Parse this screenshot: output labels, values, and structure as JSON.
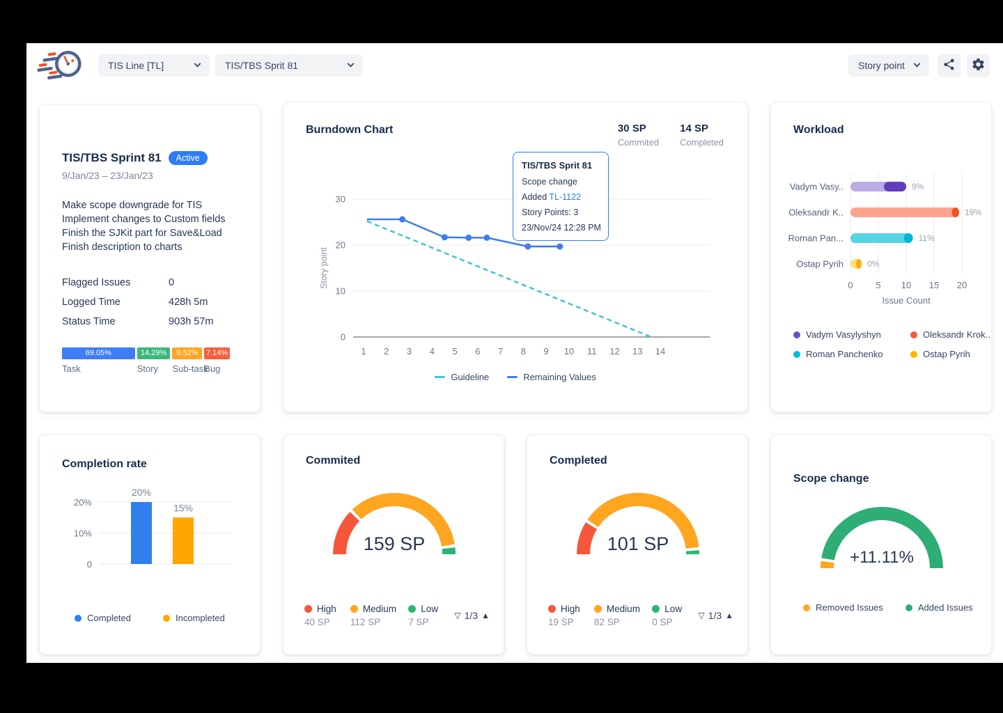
{
  "header": {
    "board_dropdown": {
      "value": "TIS Line [TL]"
    },
    "sprint_dropdown": {
      "value": "TIS/TBS Sprit 81"
    },
    "metric_dropdown": {
      "value": "Story point"
    }
  },
  "sprint_card": {
    "title": "TIS/TBS Sprint 81",
    "status_badge": "Active",
    "date_range": "9/Jan/23 – 23/Jan/23",
    "description": [
      "Make scope downgrade for TIS",
      "Implement changes to Custom fields",
      "Finish the SJKit part for Save&Load",
      "Finish description to charts"
    ],
    "stats": [
      {
        "label": "Flagged Issues",
        "value": "0"
      },
      {
        "label": "Logged Time",
        "value": "428h 5m"
      },
      {
        "label": "Status Time",
        "value": "903h 57m"
      }
    ],
    "issue_breakdown": [
      {
        "label": "Task",
        "percent": "69.05%",
        "color": "#3D7DF5",
        "width": 41.5
      },
      {
        "label": "Story",
        "percent": "14.29%",
        "color": "#3CB87B",
        "width": 19
      },
      {
        "label": "Sub-task",
        "percent": "9.52%",
        "color": "#FFA51F",
        "width": 17
      },
      {
        "label": "Bug",
        "percent": "7.14%",
        "color": "#F95D3B",
        "width": 14.5
      }
    ]
  },
  "burndown": {
    "committed": {
      "value": "30 SP",
      "label": "Commited"
    },
    "completed": {
      "value": "14 SP",
      "label": "Completed"
    },
    "tooltip": {
      "title": "TIS/TBS Sprit 81",
      "event": "Scope change",
      "added_label": "Added",
      "issue_key": "TL-1122",
      "story_points": "Story Points: 3",
      "timestamp": "23/Nov/24 12:28 PM"
    }
  },
  "chart_data": [
    {
      "id": "burndown",
      "type": "line",
      "title": "Burndown Chart",
      "xlabel": "",
      "ylabel": "Story point",
      "xlim": [
        1,
        14
      ],
      "ylim": [
        0,
        30
      ],
      "xticks": [
        1,
        2,
        3,
        4,
        5,
        6,
        7,
        8,
        9,
        10,
        11,
        12,
        13,
        14
      ],
      "yticks": [
        0,
        10,
        20,
        30
      ],
      "grid": true,
      "legend_position": "bottom",
      "series": [
        {
          "name": "Guideline",
          "color": "#3EC6D0",
          "style": "dashed",
          "points": [
            [
              1.15,
              25.2
            ],
            [
              13.6,
              0
            ]
          ]
        },
        {
          "name": "Remaining Values",
          "color": "#3B7CF0",
          "style": "solid",
          "markers": true,
          "points": [
            [
              1.15,
              25.6
            ],
            [
              2.7,
              25.6
            ],
            [
              4.55,
              21.7
            ],
            [
              5.6,
              21.6
            ],
            [
              6.4,
              21.6
            ],
            [
              8.2,
              19.7
            ],
            [
              9.6,
              19.7
            ]
          ]
        }
      ]
    },
    {
      "id": "workload",
      "type": "bar-horizontal",
      "title": "Workload",
      "xlabel": "Issue Count",
      "xlim": [
        0,
        21
      ],
      "xticks": [
        0,
        5,
        10,
        15,
        20
      ],
      "rows": [
        {
          "name": "Vadym Vasy..",
          "value": 10,
          "tip_start": 6,
          "percent_label": "9%",
          "color_light": "#B9ABE4",
          "color_dark": "#5F3DBE"
        },
        {
          "name": "Oleksandr K..",
          "value": 19.5,
          "tip_start": 18.2,
          "percent_label": "19%",
          "color_light": "#FFA48F",
          "color_dark": "#F4511E"
        },
        {
          "name": "Roman Pan...",
          "value": 11.2,
          "tip_start": 9.6,
          "percent_label": "11%",
          "color_light": "#55D4E4",
          "color_dark": "#00B8D4"
        },
        {
          "name": "Ostap Pyrih",
          "value": 2,
          "tip_start": 1,
          "percent_label": "0%",
          "color_light": "#FFDE7A",
          "color_dark": "#FFAB00"
        }
      ],
      "legend": [
        {
          "label": "Vadym Vasylyshyn",
          "color": "#6C4FC9"
        },
        {
          "label": "Oleksandr Krok..",
          "color": "#F4573B"
        },
        {
          "label": "Roman Panchenko",
          "color": "#00BCD4"
        },
        {
          "label": "Ostap Pyrih",
          "color": "#FFB300"
        }
      ]
    },
    {
      "id": "completion",
      "type": "bar",
      "title": "Completion rate",
      "categories": [
        "Completed",
        "Incompleted"
      ],
      "values": [
        20,
        15
      ],
      "bar_labels": [
        "20%",
        "15%"
      ],
      "colors": [
        "#2F80ED",
        "#FFA600"
      ],
      "yticks": [
        0,
        10,
        20
      ],
      "ytick_labels": [
        "0",
        "10%",
        "20%"
      ],
      "ylim": [
        0,
        25
      ],
      "legend": [
        {
          "label": "Completed",
          "color": "#2F80ED"
        },
        {
          "label": "Incompleted",
          "color": "#FFA600"
        }
      ]
    },
    {
      "id": "committed",
      "type": "gauge",
      "title": "Commited",
      "total_label": "159 SP",
      "segments": [
        {
          "label": "High",
          "value": 40,
          "value_label": "40 SP",
          "color": "#F4573B"
        },
        {
          "label": "Medium",
          "value": 112,
          "value_label": "112 SP",
          "color": "#FFA51F"
        },
        {
          "label": "Low",
          "value": 7,
          "value_label": "7 SP",
          "color": "#2BB673"
        }
      ],
      "pagination": {
        "down_icon": "▽",
        "label": "1/3",
        "up_icon": "▲"
      }
    },
    {
      "id": "completed",
      "type": "gauge",
      "title": "Completed",
      "total_label": "101 SP",
      "segments": [
        {
          "label": "High",
          "value": 19,
          "value_label": "19 SP",
          "color": "#F4573B"
        },
        {
          "label": "Medium",
          "value": 82,
          "value_label": "82 SP",
          "color": "#FFA51F"
        },
        {
          "label": "Low",
          "value": 0,
          "value_label": "0 SP",
          "color": "#2BB673",
          "min_frac": 0.03
        }
      ],
      "pagination": {
        "down_icon": "▽",
        "label": "1/3",
        "up_icon": "▲"
      }
    },
    {
      "id": "scope",
      "type": "gauge",
      "title": "Scope change",
      "total_label": "+11.11%",
      "segments": [
        {
          "label": "Removed Issues",
          "frac": 0.045,
          "color": "#FFA51F"
        },
        {
          "label": "Added Issues",
          "frac": 0.955,
          "color": "#2EAD74"
        }
      ]
    }
  ]
}
